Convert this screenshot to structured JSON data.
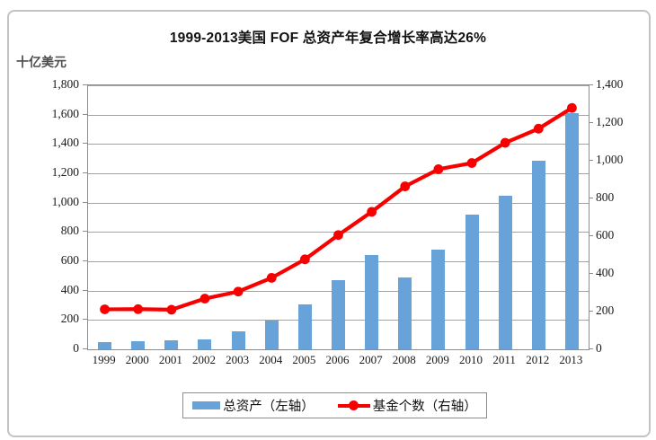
{
  "title": "1999-2013美国 FOF 总资产年复合增长率高达26%",
  "axis_unit_label": "十亿美元",
  "legend": {
    "bar_series_label": "总资产（左轴）",
    "line_series_label": "基金个数（右轴）"
  },
  "colors": {
    "bar": "#67a3d9",
    "line": "#f90000",
    "gridline": "#a3a3a3",
    "plot_border": "#8c8c8c",
    "outer_border": "#c3c3c3",
    "text": "#1a1a1a",
    "unit_label_text": "#4d4d4d"
  },
  "chart_data": {
    "type": "bar",
    "subtype": "bar+line combo, dual axis",
    "title": "1999-2013美国 FOF 总资产年复合增长率高达26%",
    "categories": [
      "1999",
      "2000",
      "2001",
      "2002",
      "2003",
      "2004",
      "2005",
      "2006",
      "2007",
      "2008",
      "2009",
      "2010",
      "2011",
      "2012",
      "2013"
    ],
    "series": [
      {
        "name": "总资产（左轴）",
        "type": "bar",
        "axis": "left",
        "values": [
          48,
          55,
          63,
          68,
          121,
          198,
          308,
          469,
          640,
          488,
          681,
          917,
          1046,
          1287,
          1610
        ]
      },
      {
        "name": "基金个数（右轴）",
        "type": "line",
        "axis": "right",
        "values": [
          212,
          213,
          210,
          269,
          306,
          379,
          477,
          606,
          729,
          864,
          955,
          988,
          1095,
          1170,
          1280
        ]
      }
    ],
    "left_axis": {
      "label": "十亿美元",
      "min": 0,
      "max": 1800,
      "step": 200,
      "tick_labels": [
        "0",
        "200",
        "400",
        "600",
        "800",
        "1,000",
        "1,200",
        "1,400",
        "1,600",
        "1,800"
      ]
    },
    "right_axis": {
      "min": 0,
      "max": 1400,
      "step": 200,
      "tick_labels": [
        "0",
        "200",
        "400",
        "600",
        "800",
        "1,000",
        "1,200",
        "1,400"
      ]
    },
    "grid": "horizontal",
    "legend_position": "bottom"
  }
}
